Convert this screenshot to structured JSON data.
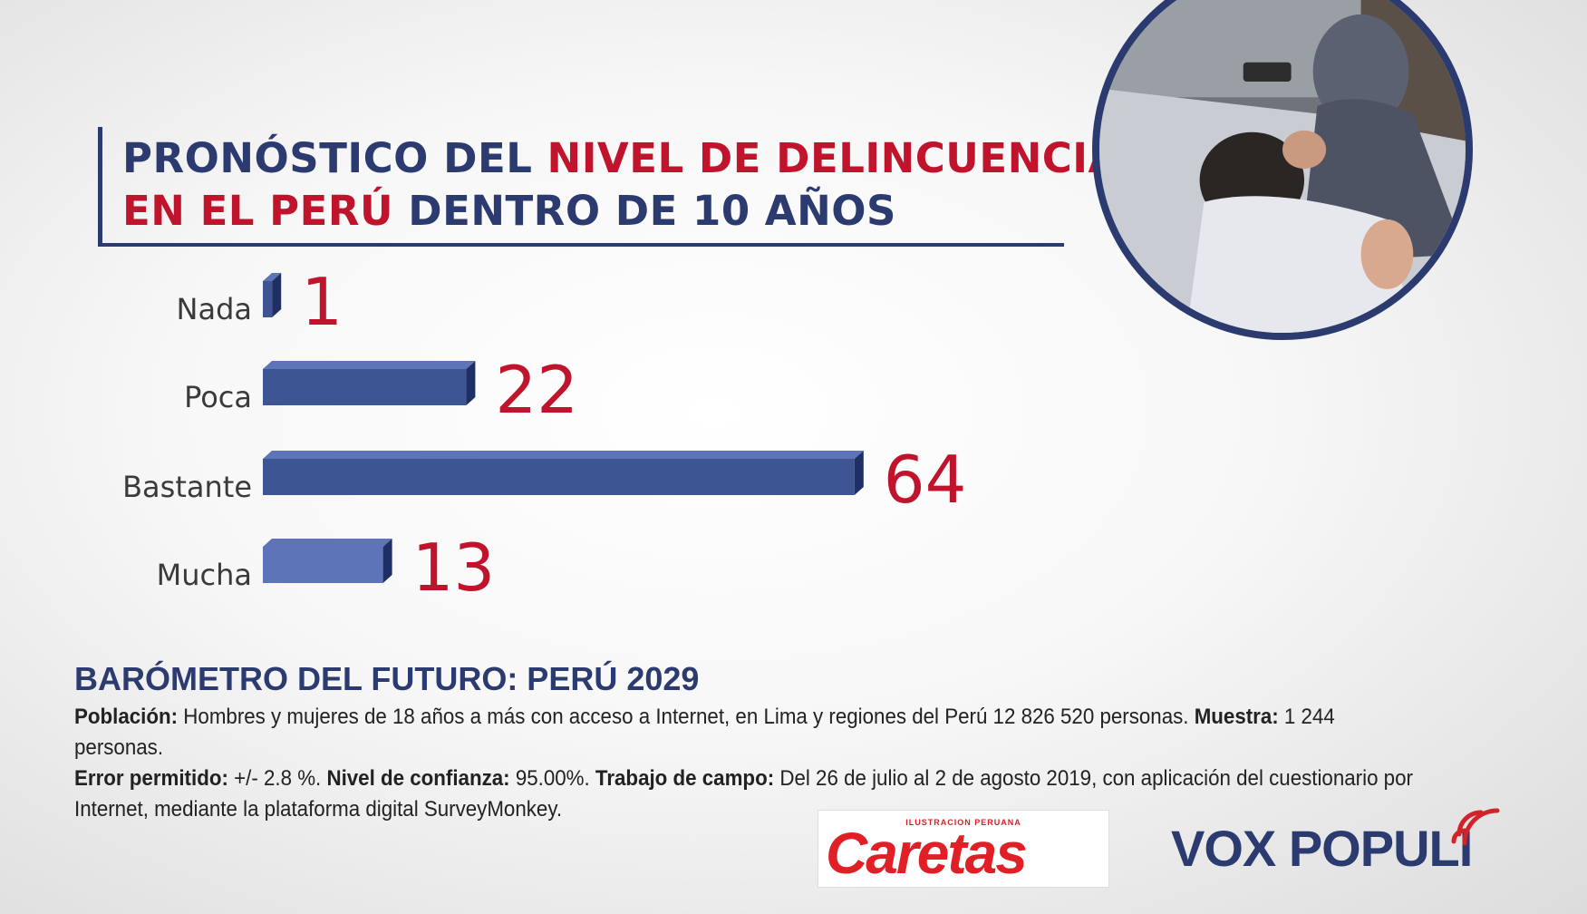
{
  "title": {
    "line1_a": "PRONÓSTICO DEL ",
    "line1_b": "NIVEL DE DELINCUENCIA",
    "line2_a": "EN EL PERÚ",
    "line2_b": " DENTRO DE 10 AÑOS"
  },
  "chart_data": {
    "type": "bar",
    "orientation": "horizontal",
    "categories": [
      "Nada",
      "Poca",
      "Bastante",
      "Mucha"
    ],
    "values": [
      1,
      22,
      64,
      13
    ],
    "value_labels": [
      "1",
      "22",
      "64",
      "13"
    ]
  },
  "colors": {
    "bar": "#3e5594",
    "bar_light": "#5d75b8",
    "bar_dark": "#1e2f66",
    "value": "#c0132c",
    "title_blue": "#2b3a6f",
    "title_red": "#c0132c"
  },
  "footer": {
    "title": "BARÓMETRO DEL FUTURO: PERÚ 2029",
    "poblacion_label": "Población:",
    "poblacion_text": " Hombres y mujeres de 18 años a más con acceso a Internet, en Lima y regiones del Perú 12 826 520 personas. ",
    "muestra_label": "Muestra:",
    "muestra_text": " 1 244 personas.",
    "error_label": "Error permitido:",
    "error_text": " +/- 2.8 %. ",
    "confianza_label": "Nivel de confianza:",
    "confianza_text": " 95.00%. ",
    "campo_label": "Trabajo de campo:",
    "campo_text": " Del 26 de julio al 2 de agosto 2019, con aplicación del cuestionario por Internet, mediante la plataforma digital SurveyMonkey."
  },
  "logos": {
    "caretas_small": "ILUSTRACION PERUANA",
    "caretas": "Caretas",
    "vox": "VOX POPULI"
  }
}
